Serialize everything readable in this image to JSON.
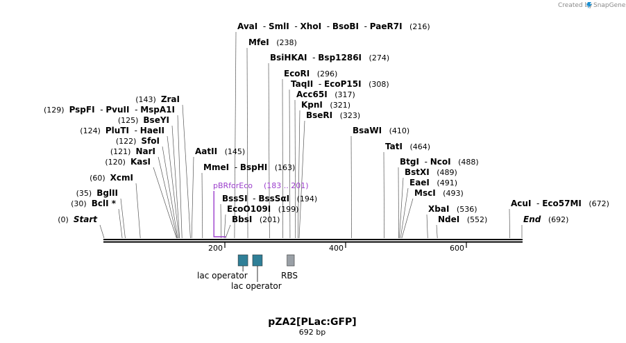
{
  "credit": "Created by",
  "brand": "SnapGene",
  "title": "pZA2[PLac:GFP]",
  "length_label": "692 bp",
  "scale": {
    "length": 692,
    "ticks": [
      "200",
      "400",
      "600"
    ],
    "tick_values": [
      200,
      400,
      600
    ]
  },
  "sites": [
    {
      "pos": 0,
      "label_pos": "(0)",
      "names": [
        "Start"
      ],
      "italic": true
    },
    {
      "pos": 30,
      "label_pos": "(30)",
      "names": [
        "BclI *"
      ]
    },
    {
      "pos": 35,
      "label_pos": "(35)",
      "names": [
        "BglII"
      ]
    },
    {
      "pos": 60,
      "label_pos": "(60)",
      "names": [
        "XcmI"
      ]
    },
    {
      "pos": 120,
      "label_pos": "(120)",
      "names": [
        "KasI"
      ]
    },
    {
      "pos": 121,
      "label_pos": "(121)",
      "names": [
        "NarI"
      ]
    },
    {
      "pos": 122,
      "label_pos": "(122)",
      "names": [
        "SfoI"
      ]
    },
    {
      "pos": 124,
      "label_pos": "(124)",
      "names": [
        "PluTI",
        "HaeII"
      ]
    },
    {
      "pos": 125,
      "label_pos": "(125)",
      "names": [
        "BseYI"
      ]
    },
    {
      "pos": 129,
      "label_pos": "(129)",
      "names": [
        "PspFI",
        "PvuII",
        "MspA1I"
      ]
    },
    {
      "pos": 143,
      "label_pos": "(143)",
      "names": [
        "ZraI"
      ]
    },
    {
      "pos": 145,
      "label_pos": "(145)",
      "names": [
        "AatII"
      ]
    },
    {
      "pos": 163,
      "label_pos": "(163)",
      "names": [
        "MmeI",
        "BspHI"
      ]
    },
    {
      "pos": 194,
      "label_pos": "(194)",
      "names": [
        "BssSI",
        "BssSαI"
      ]
    },
    {
      "pos": 199,
      "label_pos": "(199)",
      "names": [
        "EcoO109I"
      ]
    },
    {
      "pos": 201,
      "label_pos": "(201)",
      "names": [
        "BbsI"
      ]
    },
    {
      "pos": 216,
      "label_pos": "(216)",
      "names": [
        "AvaI",
        "SmlI",
        "XhoI",
        "BsoBI",
        "PaeR7I"
      ]
    },
    {
      "pos": 238,
      "label_pos": "(238)",
      "names": [
        "MfeI"
      ]
    },
    {
      "pos": 274,
      "label_pos": "(274)",
      "names": [
        "BsiHKAI",
        "Bsp1286I"
      ]
    },
    {
      "pos": 296,
      "label_pos": "(296)",
      "names": [
        "EcoRI"
      ]
    },
    {
      "pos": 308,
      "label_pos": "(308)",
      "names": [
        "TaqII",
        "EcoP15I"
      ]
    },
    {
      "pos": 317,
      "label_pos": "(317)",
      "names": [
        "Acc65I"
      ]
    },
    {
      "pos": 321,
      "label_pos": "(321)",
      "names": [
        "KpnI"
      ]
    },
    {
      "pos": 323,
      "label_pos": "(323)",
      "names": [
        "BseRI"
      ]
    },
    {
      "pos": 410,
      "label_pos": "(410)",
      "names": [
        "BsaWI"
      ]
    },
    {
      "pos": 464,
      "label_pos": "(464)",
      "names": [
        "TatI"
      ]
    },
    {
      "pos": 488,
      "label_pos": "(488)",
      "names": [
        "BtgI",
        "NcoI"
      ]
    },
    {
      "pos": 489,
      "label_pos": "(489)",
      "names": [
        "BstXI"
      ]
    },
    {
      "pos": 491,
      "label_pos": "(491)",
      "names": [
        "EaeI"
      ]
    },
    {
      "pos": 493,
      "label_pos": "(493)",
      "names": [
        "MscI"
      ]
    },
    {
      "pos": 536,
      "label_pos": "(536)",
      "names": [
        "XbaI"
      ]
    },
    {
      "pos": 552,
      "label_pos": "(552)",
      "names": [
        "NdeI"
      ]
    },
    {
      "pos": 672,
      "label_pos": "(672)",
      "names": [
        "AcuI",
        "Eco57MI"
      ]
    },
    {
      "pos": 692,
      "label_pos": "(692)",
      "names": [
        "End"
      ],
      "italic": true
    }
  ],
  "primer": {
    "name": "pBRforEco",
    "range": "(183 .. 201)",
    "start": 183,
    "end": 201,
    "color": "#9b3dcc"
  },
  "features": [
    {
      "name": "lac operator",
      "start": 222,
      "end": 238,
      "color": "#2f7f97"
    },
    {
      "name": "lac operator",
      "start": 246,
      "end": 262,
      "color": "#2f7f97"
    },
    {
      "name": "RBS",
      "start": 303,
      "end": 315,
      "color": "#9aa0a6"
    }
  ]
}
